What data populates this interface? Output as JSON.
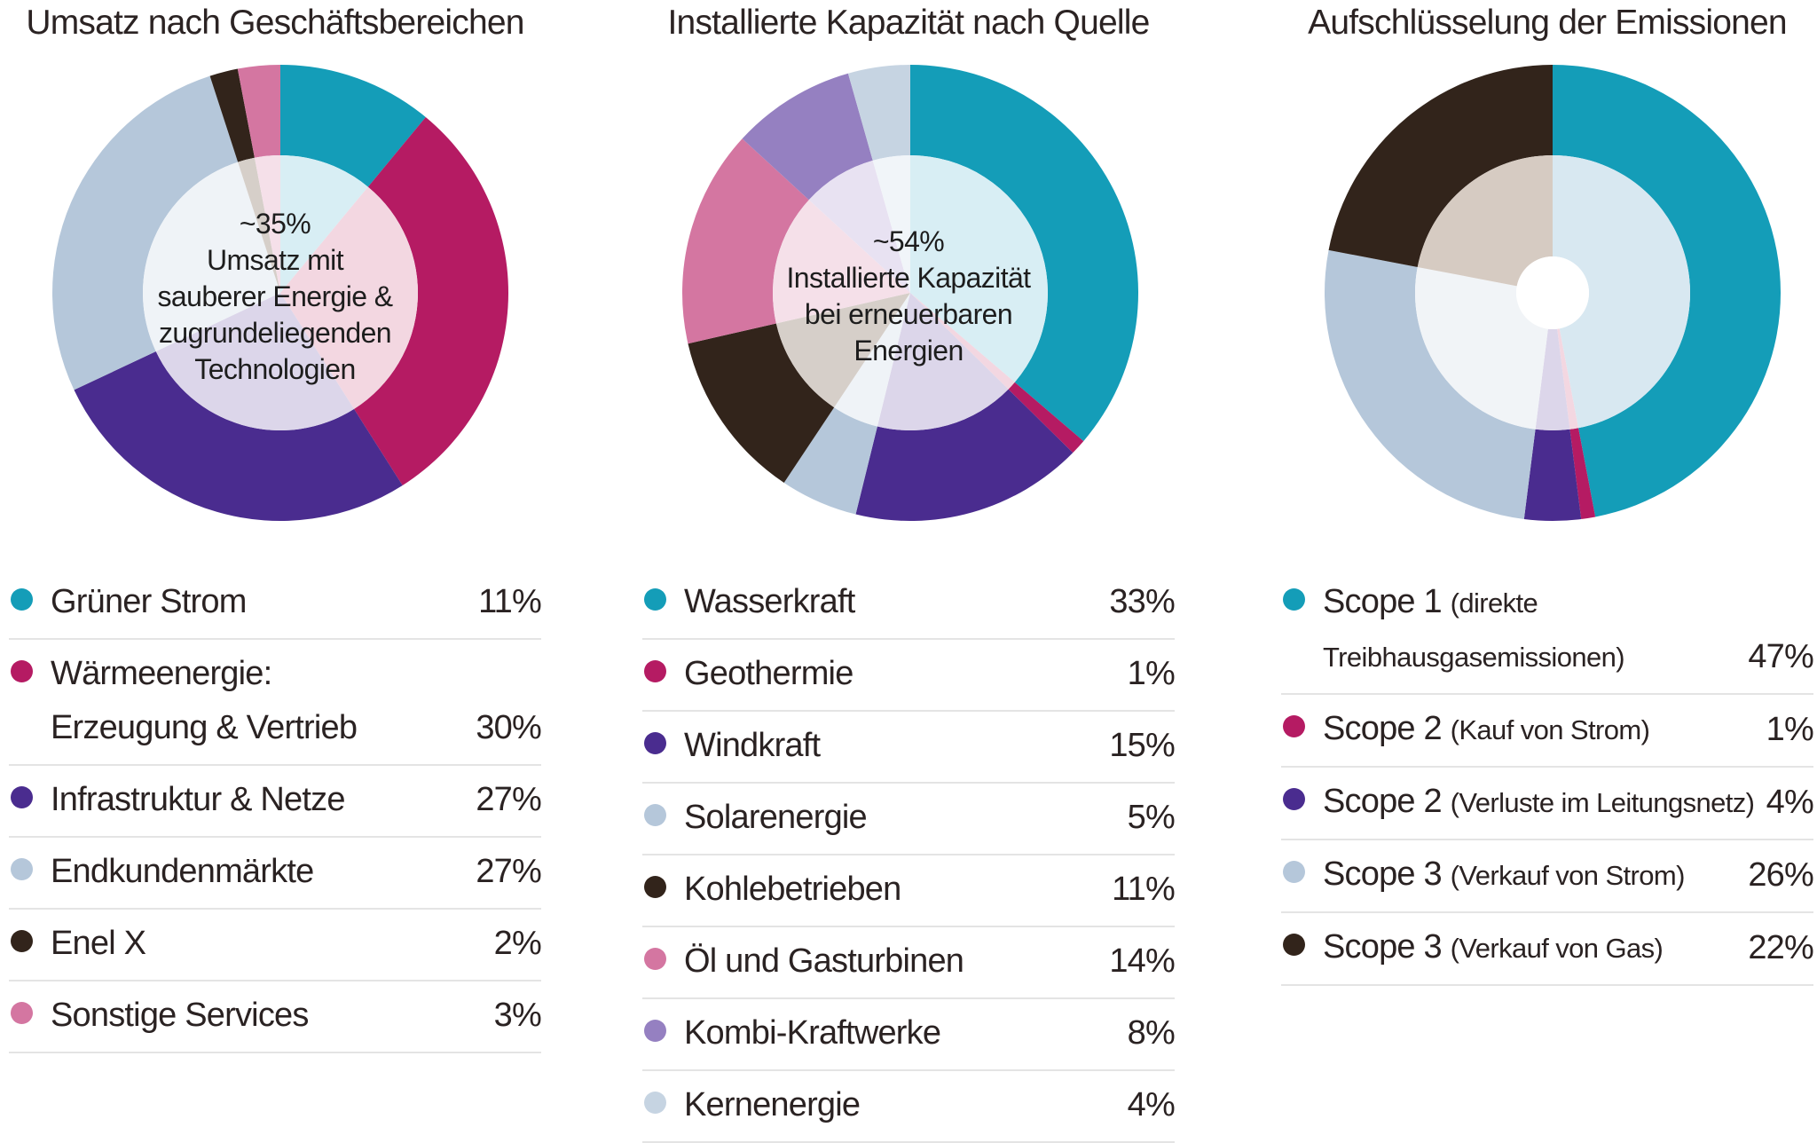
{
  "chart_data": [
    {
      "type": "pie",
      "variant": "nested-donut",
      "title": "Umsatz nach Geschäftsbereichen",
      "center_label": [
        "~35%",
        "Umsatz mit",
        "sauberer Energie &",
        "zugrundeliegenden",
        "Technologien"
      ],
      "series": [
        {
          "name": "Grüner Strom",
          "value": 11,
          "label": "11%",
          "color": "#149db8",
          "light": "#d8eef4"
        },
        {
          "name": "Wärmeenergie: Erzeugung & Vertrieb",
          "label_line1": "Wärmeenergie:",
          "label_line2": "Erzeugung & Vertrieb",
          "value": 30,
          "label": "30%",
          "color": "#b51b63",
          "light": "#f3d7e1"
        },
        {
          "name": "Infrastruktur & Netze",
          "value": 27,
          "label": "27%",
          "color": "#4a2c8f",
          "light": "#dcd6ea"
        },
        {
          "name": "Endkundenmärkte",
          "value": 27,
          "label": "27%",
          "color": "#b5c7da",
          "light": "#eff3f7"
        },
        {
          "name": "Enel X",
          "value": 2,
          "label": "2%",
          "color": "#32241b",
          "light": "#d6cfc9"
        },
        {
          "name": "Sonstige Services",
          "value": 3,
          "label": "3%",
          "color": "#d476a1",
          "light": "#f5e0e9"
        }
      ],
      "inner_ring": {
        "highlight_fraction": 0.35
      }
    },
    {
      "type": "pie",
      "variant": "nested-donut",
      "title": "Installierte Kapazität nach Quelle",
      "center_label": [
        "~54%",
        "Installierte Kapazität",
        "bei erneuerbaren",
        "Energien"
      ],
      "series": [
        {
          "name": "Wasserkraft",
          "value": 33,
          "label": "33%",
          "color": "#149db8",
          "light": "#d8eef4"
        },
        {
          "name": "Geothermie",
          "value": 1,
          "label": "1%",
          "color": "#b51b63",
          "light": "#f3d7e1"
        },
        {
          "name": "Windkraft",
          "value": 15,
          "label": "15%",
          "color": "#4a2c8f",
          "light": "#dcd6ea"
        },
        {
          "name": "Solarenergie",
          "value": 5,
          "label": "5%",
          "color": "#b5c7da",
          "light": "#eff3f7"
        },
        {
          "name": "Kohlebetrieben",
          "value": 11,
          "label": "11%",
          "color": "#32241b",
          "light": "#d6cfc9"
        },
        {
          "name": "Öl und Gasturbinen",
          "value": 14,
          "label": "14%",
          "color": "#d476a1",
          "light": "#f5e0e9"
        },
        {
          "name": "Kombi-Kraftwerke",
          "value": 8,
          "label": "8%",
          "color": "#9580c1",
          "light": "#e8e2f2"
        },
        {
          "name": "Kernenergie",
          "value": 4,
          "label": "4%",
          "color": "#c6d4e2",
          "light": "#f1f5f9"
        }
      ],
      "inner_ring": {
        "highlight_fraction": 0.54
      }
    },
    {
      "type": "pie",
      "variant": "nested-donut",
      "title": "Aufschlüsselung der Emissionen",
      "center_label": [],
      "series": [
        {
          "name": "Scope 1 (direkte Treibhausgasemissionen)",
          "main": "Scope 1",
          "detail_line1": "(direkte",
          "detail_line2": "Treibhausgasemissionen)",
          "value": 47,
          "label": "47%",
          "color": "#149db8",
          "light": "#d8e8f1"
        },
        {
          "name": "Scope 2 (Kauf von Strom)",
          "main": "Scope 2",
          "detail": "(Kauf von Strom)",
          "value": 1,
          "label": "1%",
          "color": "#b51b63",
          "light": "#f3d7e1"
        },
        {
          "name": "Scope 2 (Verluste im Leitungsnetz)",
          "main": "Scope 2",
          "detail": "(Verluste im Leitungsnetz)",
          "value": 4,
          "label": "4%",
          "color": "#4a2c8f",
          "light": "#dcd6ea"
        },
        {
          "name": "Scope 3 (Verkauf von Strom)",
          "main": "Scope 3",
          "detail": "(Verkauf von Strom)",
          "value": 26,
          "label": "26%",
          "color": "#b5c7da",
          "light": "#f1f4f7"
        },
        {
          "name": "Scope 3 (Verkauf von Gas)",
          "main": "Scope 3",
          "detail": "(Verkauf von Gas)",
          "value": 22,
          "label": "22%",
          "color": "#32241b",
          "light": "#d6cbc2"
        }
      ],
      "inner_ring": {
        "highlight_fraction": 0
      }
    }
  ]
}
